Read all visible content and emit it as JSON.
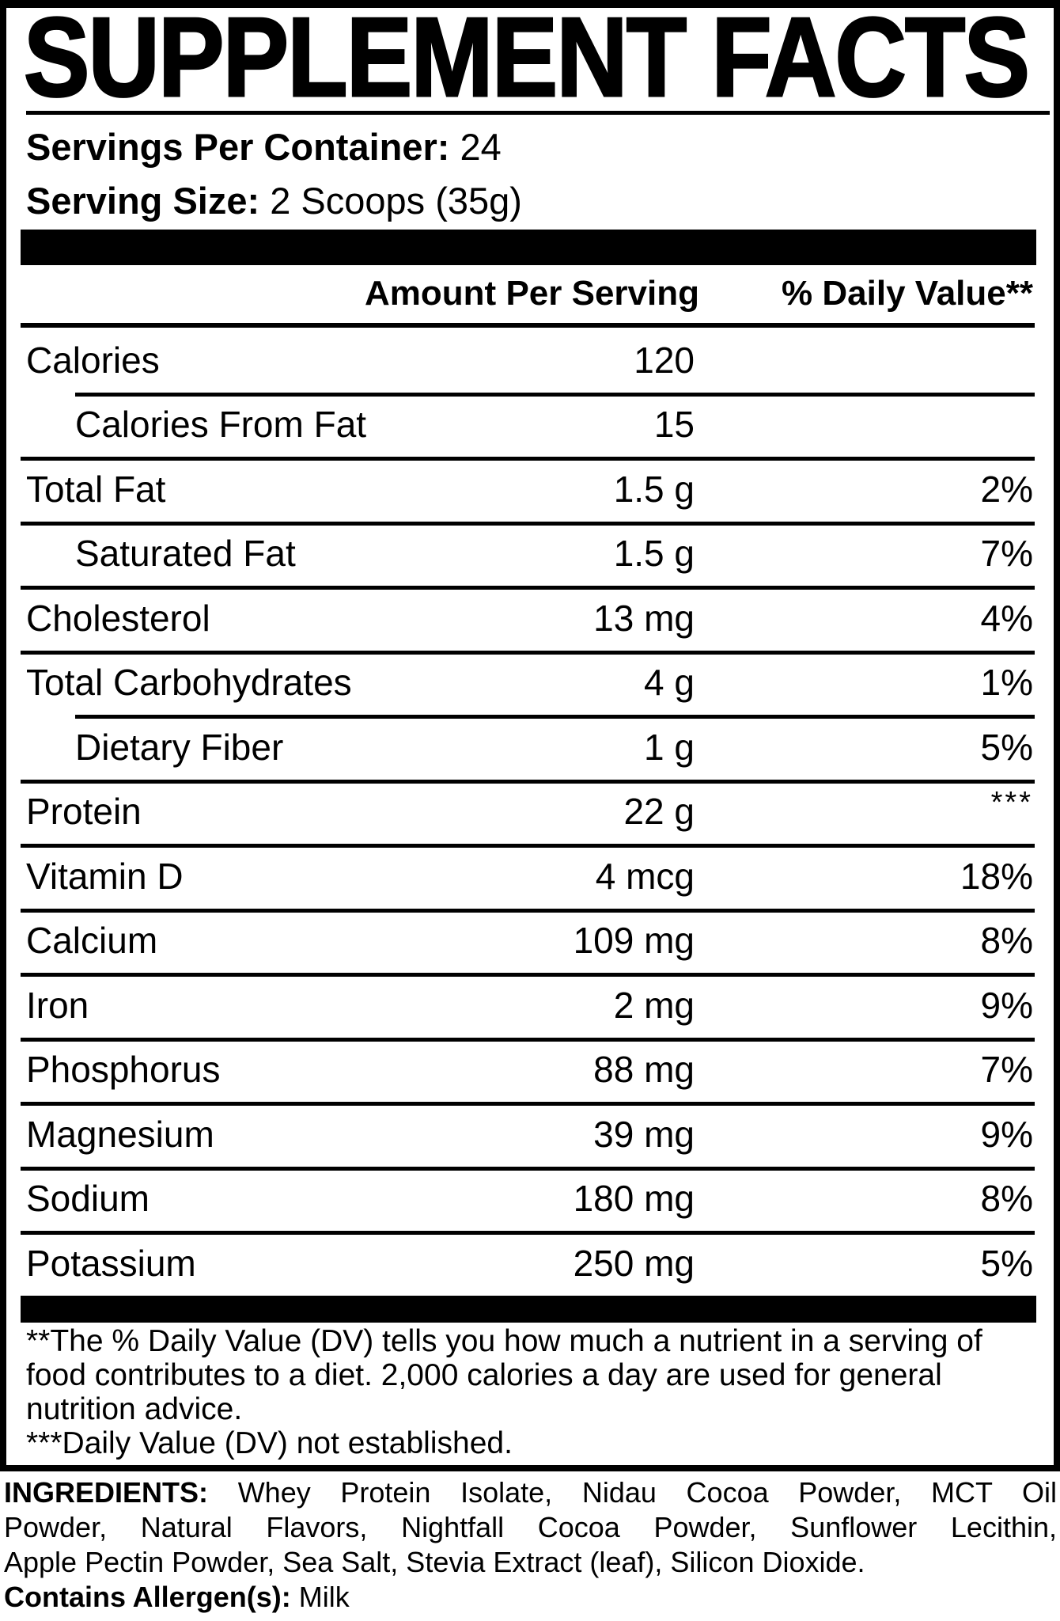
{
  "panel": {
    "title": "SUPPLEMENT FACTS",
    "serving_info": {
      "servings_label": "Servings Per Container:",
      "servings_value": "24",
      "size_label": "Serving Size:",
      "size_value": "2 Scoops (35g)"
    },
    "table": {
      "header": {
        "amount": "Amount Per Serving",
        "daily_value": "% Daily Value**"
      },
      "rows": [
        {
          "label": "Calories",
          "amount": "120",
          "dv": ""
        },
        {
          "label": "Calories From Fat",
          "amount": "15",
          "dv": ""
        },
        {
          "label": "Total Fat",
          "amount": "1.5 g",
          "dv": "2%"
        },
        {
          "label": "Saturated Fat",
          "amount": "1.5 g",
          "dv": "7%"
        },
        {
          "label": "Cholesterol",
          "amount": "13 mg",
          "dv": "4%"
        },
        {
          "label": "Total Carbohydrates",
          "amount": "4 g",
          "dv": "1%"
        },
        {
          "label": "Dietary Fiber",
          "amount": "1 g",
          "dv": "5%"
        },
        {
          "label": "Protein",
          "amount": "22 g",
          "dv": "***"
        },
        {
          "label": "Vitamin D",
          "amount": "4 mcg",
          "dv": "18%"
        },
        {
          "label": "Calcium",
          "amount": "109 mg",
          "dv": "8%"
        },
        {
          "label": "Iron",
          "amount": "2 mg",
          "dv": "9%"
        },
        {
          "label": "Phosphorus",
          "amount": "88 mg",
          "dv": "7%"
        },
        {
          "label": "Magnesium",
          "amount": "39 mg",
          "dv": "9%"
        },
        {
          "label": "Sodium",
          "amount": "180 mg",
          "dv": "8%"
        },
        {
          "label": "Potassium",
          "amount": "250 mg",
          "dv": "5%"
        }
      ]
    },
    "footnotes": [
      "**The % Daily Value (DV) tells you how much a nutrient in a serving of",
      "food contributes to a diet. 2,000 calories a day are used for general",
      "nutrition advice.",
      "***Daily Value (DV) not established."
    ],
    "colors": {
      "ink": "#000000",
      "paper": "#ffffff"
    }
  },
  "ingredients": {
    "label": "INGREDIENTS:",
    "lines": [
      "Whey Protein Isolate, Nidau Cocoa Powder, MCT Oil",
      "Powder, Natural Flavors, Nightfall Cocoa Powder, Sunflower Lecithin,",
      "Apple Pectin Powder, Sea Salt, Stevia Extract (leaf), Silicon Dioxide."
    ],
    "allergen_label": "Contains Allergen(s):",
    "allergen_value": "Milk"
  }
}
